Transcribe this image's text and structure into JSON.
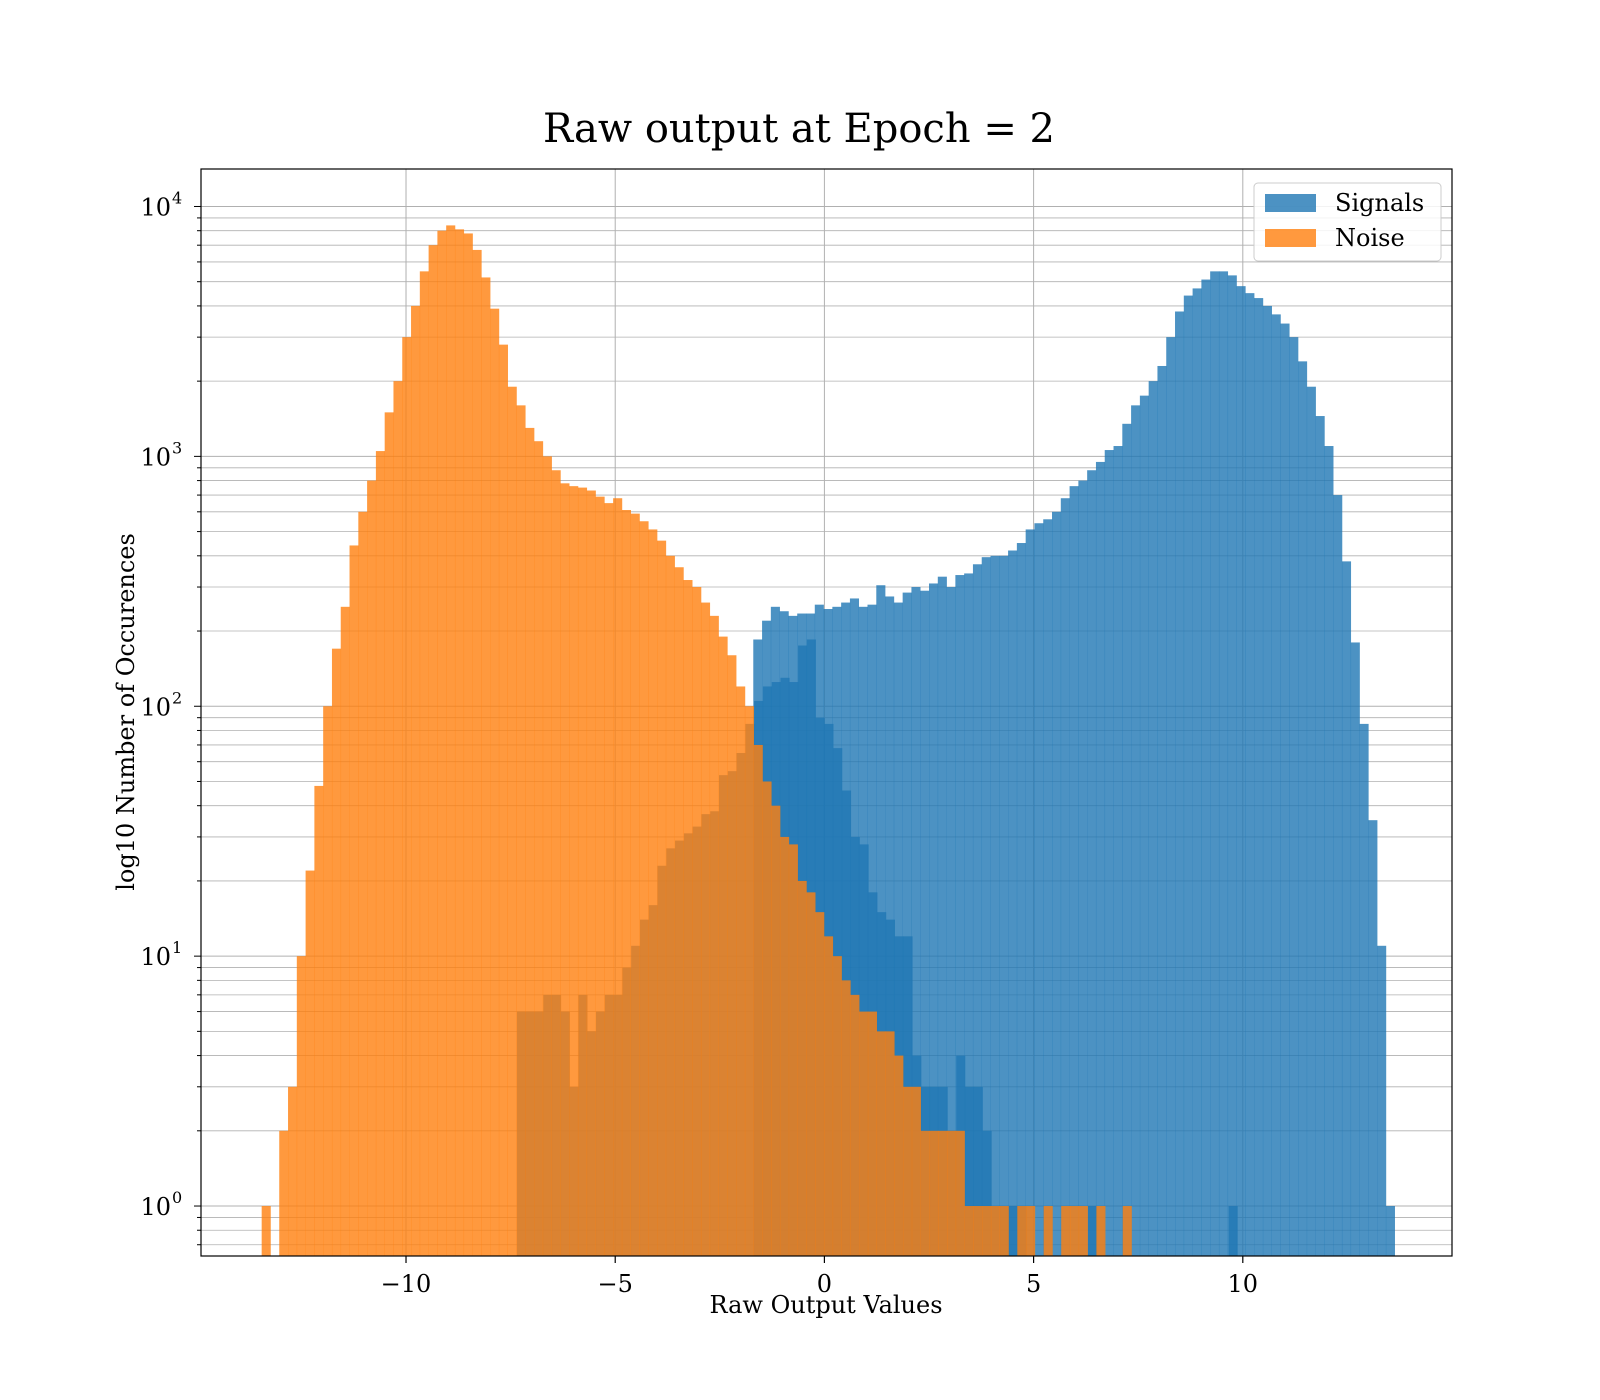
{
  "chart_data": {
    "type": "bar",
    "title": "Raw output at Epoch = 2",
    "xlabel": "Raw Output Values",
    "ylabel": "log10 Number of Occurences",
    "xlim": [
      -14.9,
      15.0
    ],
    "ylim_log10": [
      -0.2,
      4.15
    ],
    "y_scale": "log",
    "grid": "on (major and minor)",
    "legend": "top-right",
    "x_ticks": [
      {
        "value": -10,
        "label": "−10"
      },
      {
        "value": -5,
        "label": "−5"
      },
      {
        "value": 0,
        "label": "0"
      },
      {
        "value": 5,
        "label": "5"
      },
      {
        "value": 10,
        "label": "10"
      }
    ],
    "y_ticks": [
      {
        "exp": 0,
        "base": "10",
        "sup": "0"
      },
      {
        "exp": 1,
        "base": "10",
        "sup": "1"
      },
      {
        "exp": 2,
        "base": "10",
        "sup": "2"
      },
      {
        "exp": 3,
        "base": "10",
        "sup": "3"
      },
      {
        "exp": 4,
        "base": "10",
        "sup": "4"
      }
    ],
    "series": [
      {
        "name": "Signals",
        "color": "#1f77b4",
        "bin_start": -7.35,
        "bin_width": 0.21,
        "counts": [
          6,
          6,
          6,
          7,
          7,
          6,
          3,
          7,
          5,
          6,
          7,
          7,
          9,
          11,
          14,
          16,
          23,
          27,
          29,
          31,
          33,
          37,
          38,
          53,
          55,
          65,
          85,
          105,
          120,
          125,
          130,
          125,
          175,
          185,
          90,
          85,
          68,
          46,
          30,
          28,
          18,
          15,
          14,
          12,
          12,
          4,
          3,
          3,
          3,
          2,
          4,
          3,
          3,
          2,
          1,
          1,
          1,
          1,
          0,
          0,
          0,
          0,
          0,
          0,
          0,
          1,
          0,
          0,
          0,
          0,
          0,
          0,
          0,
          0,
          0,
          0,
          0,
          0,
          0,
          0,
          0,
          1,
          0,
          0,
          0,
          0,
          0,
          0,
          0,
          0,
          0,
          0,
          0,
          0,
          0,
          0,
          0,
          0,
          0,
          0,
          0,
          0,
          0,
          0,
          0,
          0,
          0,
          0,
          0,
          0,
          0,
          0,
          0,
          0,
          0,
          0,
          0,
          0,
          0,
          0,
          0,
          0,
          0,
          0,
          0,
          0,
          0,
          0,
          0,
          0,
          0,
          0,
          0,
          0,
          0,
          0,
          0,
          0,
          0,
          0,
          0,
          0,
          0,
          0,
          0,
          0,
          0,
          0,
          0,
          0,
          0,
          0
        ]
      },
      {
        "name": "Noise",
        "color": "#ff7f0e",
        "bin_start": -13.45,
        "bin_width": 0.21,
        "counts": [
          1,
          0,
          2,
          3,
          10,
          22,
          48,
          100,
          170,
          250,
          440,
          600,
          800,
          1050,
          1500,
          2000,
          3000,
          4000,
          5500,
          7000,
          8000,
          8400,
          8100,
          7800,
          6700,
          5200,
          3900,
          2800,
          1900,
          1600,
          1300,
          1150,
          1000,
          880,
          780,
          760,
          750,
          730,
          690,
          650,
          680,
          610,
          590,
          550,
          510,
          460,
          400,
          360,
          320,
          300,
          260,
          230,
          190,
          160,
          120,
          100,
          70,
          50,
          40,
          30,
          28,
          20,
          18,
          15,
          12,
          10,
          8,
          7,
          6,
          6,
          5,
          5,
          4,
          3,
          3,
          2,
          2,
          2,
          2,
          2,
          1,
          1,
          1,
          1,
          1,
          0,
          1,
          1,
          0,
          1,
          0,
          1,
          1,
          1,
          0,
          1,
          0,
          0,
          1,
          0,
          0,
          0,
          0,
          0,
          0,
          0,
          0,
          0,
          0,
          0,
          0,
          0,
          0,
          0,
          0,
          0,
          0,
          0,
          0,
          0,
          0,
          0,
          0,
          0,
          0,
          0,
          0,
          0,
          0,
          0,
          0,
          0,
          0,
          0,
          0
        ]
      }
    ],
    "signals_main": {
      "bin_start": -1.7,
      "bin_width": 0.21,
      "counts": [
        185,
        220,
        250,
        240,
        230,
        235,
        235,
        255,
        245,
        250,
        260,
        270,
        250,
        255,
        305,
        275,
        260,
        285,
        300,
        290,
        310,
        330,
        300,
        335,
        340,
        370,
        395,
        400,
        400,
        420,
        450,
        510,
        540,
        560,
        600,
        680,
        760,
        800,
        880,
        950,
        1060,
        1100,
        1350,
        1600,
        1750,
        2000,
        2300,
        3000,
        3800,
        4400,
        4700,
        5100,
        5500,
        5500,
        5300,
        4800,
        4500,
        4300,
        4000,
        3700,
        3400,
        3000,
        2400,
        1900,
        1450,
        1100,
        700,
        380,
        180,
        85,
        35,
        11,
        1
      ]
    },
    "legend_entries": [
      {
        "label": "Signals",
        "color": "#1f77b4"
      },
      {
        "label": "Noise",
        "color": "#ff7f0e"
      }
    ]
  }
}
